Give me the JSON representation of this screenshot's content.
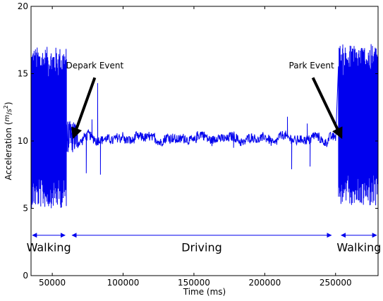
{
  "chart_data": {
    "type": "line",
    "title": "",
    "xlabel": "Time (ms)",
    "ylabel_main": "Acceleration (",
    "ylabel_unit_m": "m",
    "ylabel_unit_s": "s",
    "ylabel_unit_exp": "2",
    "ylabel_close": ")",
    "xlim": [
      35000,
      280000
    ],
    "ylim": [
      0,
      20
    ],
    "x_ticks": [
      50000,
      100000,
      150000,
      200000,
      250000
    ],
    "x_tick_labels": [
      "50000",
      "100000",
      "150000",
      "200000",
      "250000"
    ],
    "y_ticks": [
      0,
      5,
      10,
      15,
      20
    ],
    "y_tick_labels": [
      "0",
      "5",
      "10",
      "15",
      "20"
    ],
    "grid": false,
    "series": [
      {
        "color": "#0000ee",
        "segments": [
          {
            "kind": "walking",
            "x_start": 35000,
            "x_end": 60000,
            "center": 11.0,
            "amplitude": 6.0,
            "min": 4.7,
            "max": 18.8
          },
          {
            "kind": "transition",
            "x_start": 60000,
            "x_end": 68000,
            "center": 10.3,
            "amplitude": 1.2
          },
          {
            "kind": "driving",
            "x_start": 68000,
            "x_end": 250000,
            "center": 10.2,
            "amplitude": 0.35
          },
          {
            "kind": "walking",
            "x_start": 252000,
            "x_end": 280000,
            "center": 11.2,
            "amplitude": 6.0,
            "min": 4.3,
            "max": 18.0
          }
        ],
        "spikes": [
          {
            "x": 74000,
            "y": 7.6
          },
          {
            "x": 78000,
            "y": 11.6
          },
          {
            "x": 82000,
            "y": 14.3
          },
          {
            "x": 84000,
            "y": 7.5
          },
          {
            "x": 178000,
            "y": 9.5
          },
          {
            "x": 216000,
            "y": 11.8
          },
          {
            "x": 219000,
            "y": 7.9
          },
          {
            "x": 230000,
            "y": 11.3
          },
          {
            "x": 232000,
            "y": 8.1
          }
        ]
      }
    ],
    "annotations": [
      {
        "text": "Depark Event",
        "text_x": 80000,
        "text_y": 15.4,
        "arrow_from": [
          80000,
          14.7
        ],
        "arrow_to": [
          65000,
          10.3
        ]
      },
      {
        "text": "Park Event",
        "text_x": 233000,
        "text_y": 15.4,
        "arrow_from": [
          234000,
          14.7
        ],
        "arrow_to": [
          254000,
          10.3
        ]
      }
    ],
    "phases": [
      {
        "label": "Walking",
        "x_start": 35000,
        "x_end": 60000,
        "y": 3.0
      },
      {
        "label": "Driving",
        "x_start": 63000,
        "x_end": 248000,
        "y": 3.0
      },
      {
        "label": "Walking",
        "x_start": 253000,
        "x_end": 280000,
        "y": 3.0
      }
    ]
  }
}
